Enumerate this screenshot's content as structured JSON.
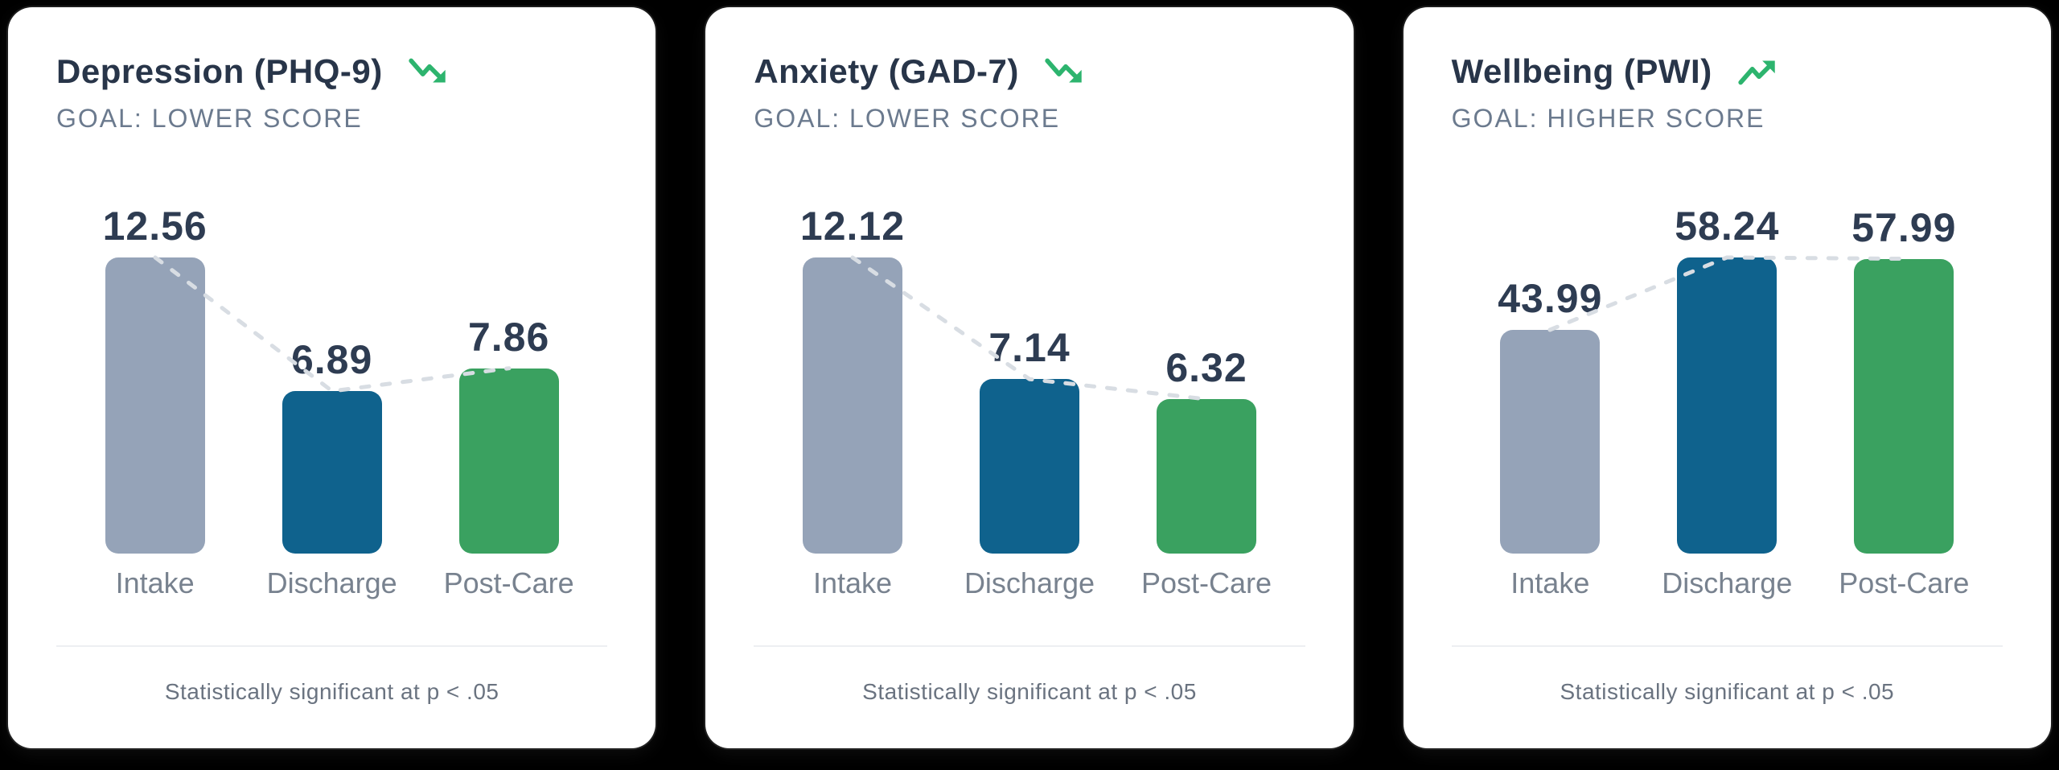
{
  "page": {
    "background": "#000000",
    "card_background": "#ffffff"
  },
  "colors": {
    "title_text": "#283549",
    "goal_text": "#6b7a8e",
    "value_text": "#2e3c52",
    "axis_text": "#78828f",
    "note_text": "#6a7380",
    "bar_intake": "#95a3b8",
    "bar_discharge": "#0f628d",
    "bar_postcare": "#3aa160",
    "trend_green": "#2db46e",
    "dash_line": "#d8dde3"
  },
  "icons": {
    "trend_down": "trending-down-arrow",
    "trend_up": "trending-up-arrow"
  },
  "chart_data": [
    {
      "type": "bar",
      "title": "Depression (PHQ-9)",
      "goal": "GOAL: LOWER SCORE",
      "trend": "down",
      "categories": [
        "Intake",
        "Discharge",
        "Post-Care"
      ],
      "values": [
        12.56,
        6.89,
        7.86
      ],
      "value_labels": [
        "12.56",
        "6.89",
        "7.86"
      ],
      "bar_colors": [
        "#95a3b8",
        "#0f628d",
        "#3aa160"
      ],
      "connector": "dashed line across bar tops",
      "ylim": [
        0,
        12.56
      ],
      "grid": false,
      "legend": "none",
      "note": "Statistically significant at p < .05"
    },
    {
      "type": "bar",
      "title": "Anxiety (GAD-7)",
      "goal": "GOAL: LOWER SCORE",
      "trend": "down",
      "categories": [
        "Intake",
        "Discharge",
        "Post-Care"
      ],
      "values": [
        12.12,
        7.14,
        6.32
      ],
      "value_labels": [
        "12.12",
        "7.14",
        "6.32"
      ],
      "bar_colors": [
        "#95a3b8",
        "#0f628d",
        "#3aa160"
      ],
      "connector": "dashed line across bar tops",
      "ylim": [
        0,
        12.12
      ],
      "grid": false,
      "legend": "none",
      "note": "Statistically significant at p < .05"
    },
    {
      "type": "bar",
      "title": "Wellbeing (PWI)",
      "goal": "GOAL: HIGHER SCORE",
      "trend": "up",
      "categories": [
        "Intake",
        "Discharge",
        "Post-Care"
      ],
      "values": [
        43.99,
        58.24,
        57.99
      ],
      "value_labels": [
        "43.99",
        "58.24",
        "57.99"
      ],
      "bar_colors": [
        "#95a3b8",
        "#0f628d",
        "#3aa160"
      ],
      "connector": "dashed line across bar tops",
      "ylim": [
        0,
        58.24
      ],
      "grid": false,
      "legend": "none",
      "note": "Statistically significant at p < .05"
    }
  ]
}
